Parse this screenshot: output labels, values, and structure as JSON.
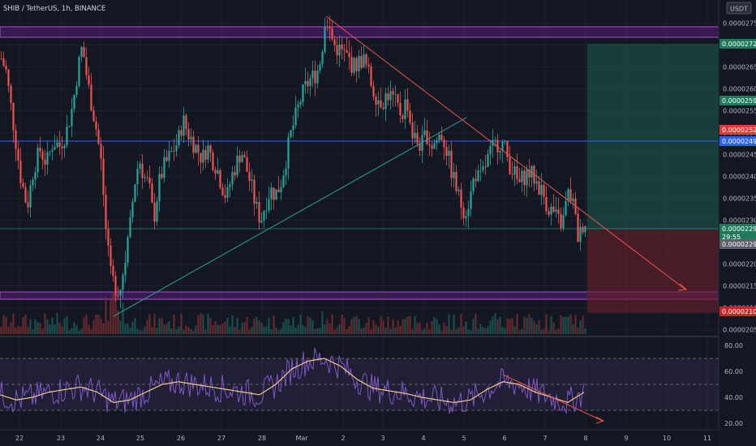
{
  "header": {
    "title": "SHIB / TetherUS, 1h, BINANCE",
    "currency_badge": "USDT"
  },
  "chart_data": [
    {
      "type": "candlestick",
      "title": "SHIB / TetherUS, 1h, BINANCE",
      "x_ticks": [
        "22",
        "23",
        "24",
        "25",
        "26",
        "27",
        "28",
        "Mar",
        "2",
        "3",
        "4",
        "5",
        "6",
        "7",
        "8",
        "9",
        "10",
        "11"
      ],
      "y_ticks": [
        "0.00002750",
        "0.00002700",
        "0.00002650",
        "0.00002600",
        "0.00002550",
        "0.00002500",
        "0.00002450",
        "0.00002400",
        "0.00002350",
        "0.00002300",
        "0.00002250",
        "0.00002200",
        "0.00002150",
        "0.00002100",
        "0.00002050"
      ],
      "ylim": [
        2.04e-05,
        2.803e-05
      ],
      "price_labels": [
        {
          "value": "0.00002721",
          "color": "#1f7a5c"
        },
        {
          "value": "0.00002590",
          "color": "#1f7a5c"
        },
        {
          "value": "0.00002520",
          "color": "#e53935"
        },
        {
          "value": "0.00002496",
          "color": "#2962ff"
        },
        {
          "value": "0.00002297",
          "color": "#1f7a5c"
        },
        {
          "value": "29:55",
          "color": "#1f7a5c"
        },
        {
          "value": "0.00002292",
          "color": "#5d606b"
        },
        {
          "value": "0.00002103",
          "color": "#c62828"
        }
      ],
      "close_path": [
        [
          0,
          2670
        ],
        [
          6,
          2640
        ],
        [
          12,
          2560
        ],
        [
          18,
          2480
        ],
        [
          24,
          2400
        ],
        [
          32,
          2330
        ],
        [
          40,
          2420
        ],
        [
          48,
          2460
        ],
        [
          56,
          2430
        ],
        [
          64,
          2480
        ],
        [
          72,
          2470
        ],
        [
          80,
          2500
        ],
        [
          88,
          2560
        ],
        [
          94,
          2640
        ],
        [
          100,
          2700
        ],
        [
          106,
          2620
        ],
        [
          112,
          2560
        ],
        [
          118,
          2500
        ],
        [
          124,
          2420
        ],
        [
          128,
          2300
        ],
        [
          134,
          2180
        ],
        [
          140,
          2150
        ],
        [
          146,
          2140
        ],
        [
          152,
          2200
        ],
        [
          158,
          2270
        ],
        [
          164,
          2380
        ],
        [
          170,
          2440
        ],
        [
          176,
          2400
        ],
        [
          182,
          2380
        ],
        [
          188,
          2300
        ],
        [
          194,
          2380
        ],
        [
          200,
          2420
        ],
        [
          206,
          2440
        ],
        [
          212,
          2460
        ],
        [
          218,
          2480
        ],
        [
          224,
          2530
        ],
        [
          230,
          2500
        ],
        [
          236,
          2480
        ],
        [
          242,
          2460
        ],
        [
          248,
          2440
        ],
        [
          254,
          2470
        ],
        [
          260,
          2440
        ],
        [
          266,
          2420
        ],
        [
          272,
          2380
        ],
        [
          278,
          2350
        ],
        [
          284,
          2400
        ],
        [
          290,
          2430
        ],
        [
          296,
          2460
        ],
        [
          302,
          2420
        ],
        [
          308,
          2380
        ],
        [
          314,
          2330
        ],
        [
          320,
          2300
        ],
        [
          326,
          2340
        ],
        [
          332,
          2370
        ],
        [
          338,
          2360
        ],
        [
          344,
          2380
        ],
        [
          350,
          2430
        ],
        [
          356,
          2490
        ],
        [
          362,
          2530
        ],
        [
          368,
          2570
        ],
        [
          374,
          2600
        ],
        [
          380,
          2620
        ],
        [
          386,
          2630
        ],
        [
          392,
          2650
        ],
        [
          396,
          2700
        ],
        [
          400,
          2780
        ],
        [
          404,
          2740
        ],
        [
          410,
          2700
        ],
        [
          416,
          2690
        ],
        [
          422,
          2680
        ],
        [
          428,
          2670
        ],
        [
          434,
          2650
        ],
        [
          440,
          2660
        ],
        [
          446,
          2670
        ],
        [
          452,
          2640
        ],
        [
          458,
          2600
        ],
        [
          464,
          2580
        ],
        [
          470,
          2570
        ],
        [
          476,
          2590
        ],
        [
          482,
          2580
        ],
        [
          488,
          2560
        ],
        [
          494,
          2540
        ],
        [
          500,
          2580
        ],
        [
          506,
          2500
        ],
        [
          512,
          2480
        ],
        [
          518,
          2470
        ],
        [
          524,
          2500
        ],
        [
          530,
          2470
        ],
        [
          536,
          2480
        ],
        [
          542,
          2500
        ],
        [
          548,
          2470
        ],
        [
          554,
          2420
        ],
        [
          560,
          2380
        ],
        [
          566,
          2340
        ],
        [
          572,
          2320
        ],
        [
          578,
          2350
        ],
        [
          584,
          2410
        ],
        [
          590,
          2390
        ],
        [
          596,
          2420
        ],
        [
          602,
          2450
        ],
        [
          608,
          2470
        ],
        [
          614,
          2480
        ],
        [
          620,
          2470
        ],
        [
          626,
          2430
        ],
        [
          632,
          2410
        ],
        [
          638,
          2380
        ],
        [
          644,
          2400
        ],
        [
          650,
          2410
        ],
        [
          656,
          2400
        ],
        [
          662,
          2380
        ],
        [
          668,
          2360
        ],
        [
          674,
          2330
        ],
        [
          680,
          2320
        ],
        [
          686,
          2300
        ],
        [
          692,
          2290
        ],
        [
          698,
          2360
        ],
        [
          704,
          2350
        ],
        [
          708,
          2300
        ],
        [
          712,
          2250
        ],
        [
          716,
          2290
        ],
        [
          720,
          2297
        ]
      ],
      "rsi": {
        "y_ticks": [
          "80.00",
          "60.00",
          "40.00",
          "20.00"
        ],
        "ylim": [
          15,
          85
        ],
        "levels": [
          70,
          50,
          30
        ],
        "ma_path": [
          [
            0,
            42
          ],
          [
            20,
            38
          ],
          [
            40,
            40
          ],
          [
            60,
            44
          ],
          [
            80,
            46
          ],
          [
            100,
            48
          ],
          [
            120,
            44
          ],
          [
            140,
            36
          ],
          [
            160,
            38
          ],
          [
            180,
            44
          ],
          [
            200,
            50
          ],
          [
            220,
            52
          ],
          [
            240,
            50
          ],
          [
            260,
            48
          ],
          [
            280,
            46
          ],
          [
            300,
            44
          ],
          [
            320,
            42
          ],
          [
            340,
            50
          ],
          [
            360,
            62
          ],
          [
            380,
            68
          ],
          [
            400,
            70
          ],
          [
            420,
            64
          ],
          [
            440,
            54
          ],
          [
            460,
            47
          ],
          [
            480,
            45
          ],
          [
            500,
            43
          ],
          [
            520,
            40
          ],
          [
            540,
            38
          ],
          [
            560,
            36
          ],
          [
            580,
            38
          ],
          [
            600,
            46
          ],
          [
            620,
            52
          ],
          [
            640,
            50
          ],
          [
            660,
            44
          ],
          [
            680,
            40
          ],
          [
            700,
            36
          ],
          [
            720,
            44
          ]
        ]
      }
    }
  ]
}
